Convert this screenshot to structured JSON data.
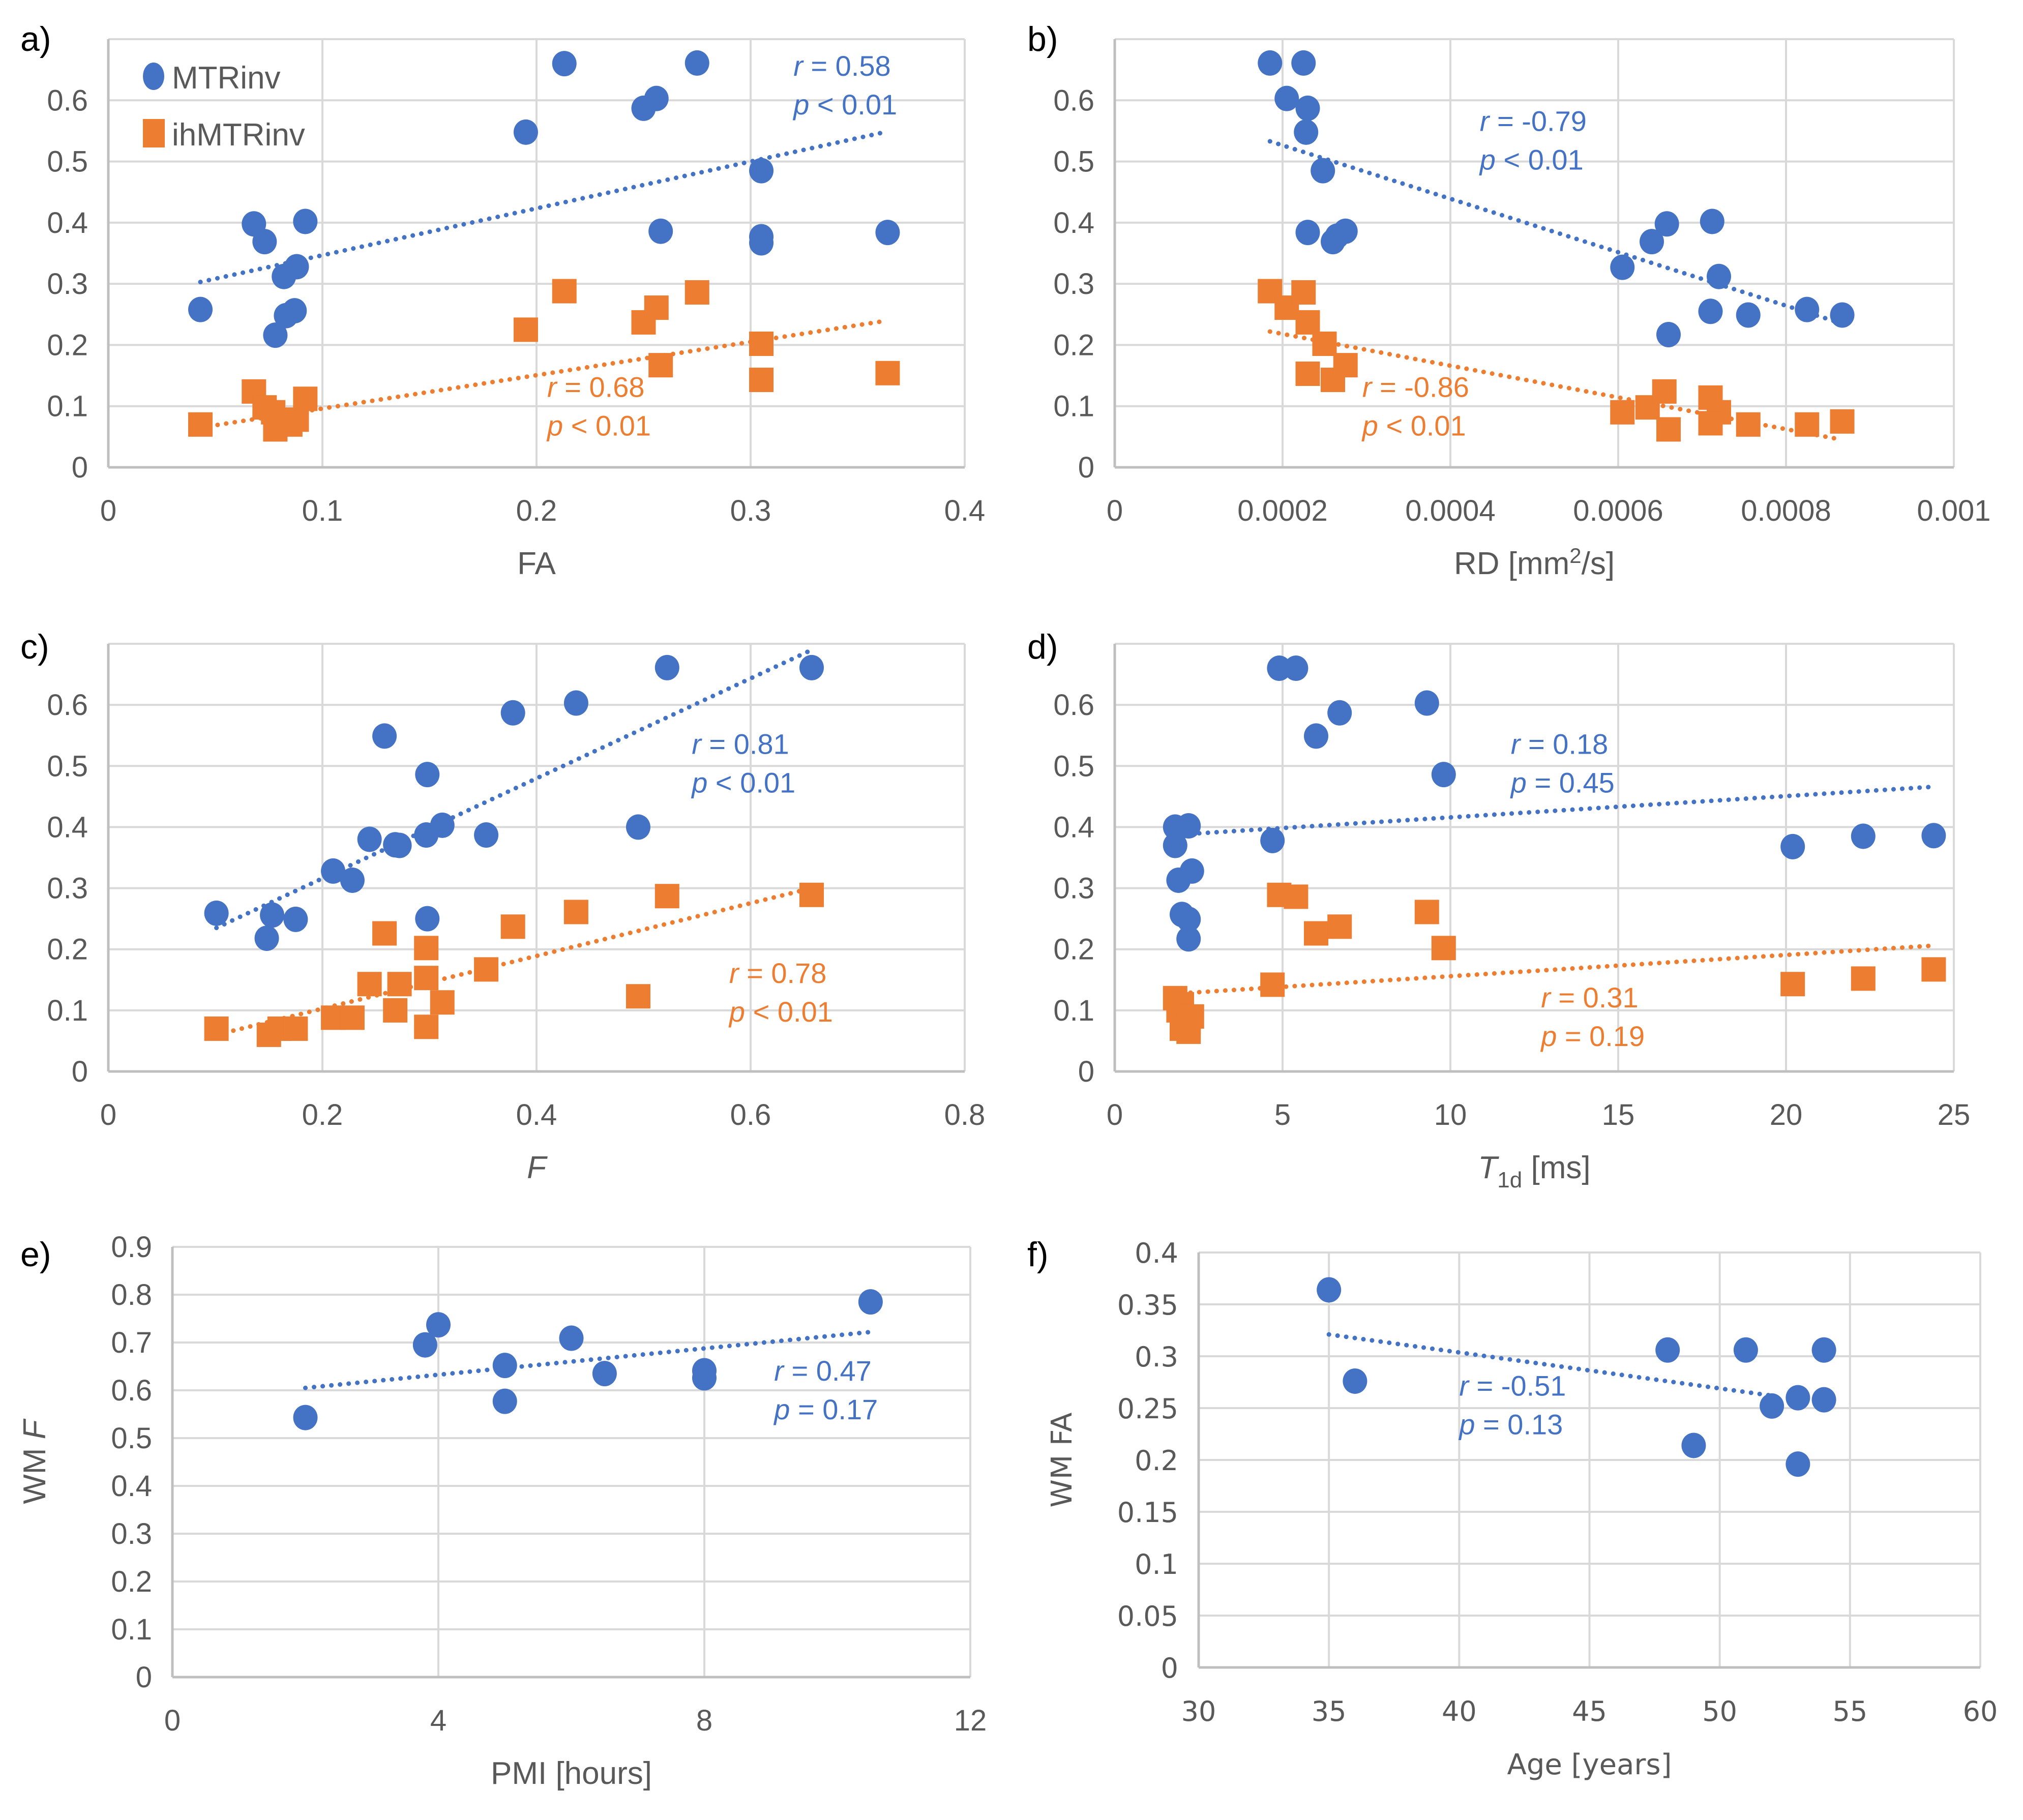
{
  "colors": {
    "mtr": "#4472C4",
    "ihmtr": "#ED7D31",
    "grid": "#D9D9D9",
    "text": "#595959"
  },
  "legend": [
    {
      "label": "MTRinv",
      "marker": "circle",
      "color": "#4472C4"
    },
    {
      "label": "ihMTRinv",
      "marker": "square",
      "color": "#ED7D31"
    }
  ],
  "chart_data": [
    {
      "panel": "a)",
      "type": "scatter",
      "xlabel": "FA",
      "ylabel": "",
      "xlim": [
        0,
        0.4
      ],
      "ylim": [
        0,
        0.7
      ],
      "xticks": [
        "0",
        "0.1",
        "0.2",
        "0.3",
        "0.4"
      ],
      "xtick_values": [
        0,
        0.1,
        0.2,
        0.3,
        0.4
      ],
      "yticks": [
        "0",
        "0.1",
        "0.2",
        "0.3",
        "0.4",
        "0.5",
        "0.6"
      ],
      "ytick_values": [
        0,
        0.1,
        0.2,
        0.3,
        0.4,
        0.5,
        0.6
      ],
      "grid": true,
      "legend": "top-left",
      "series": [
        {
          "name": "MTRinv",
          "marker": "circle",
          "x": [
            0.043,
            0.068,
            0.073,
            0.092,
            0.082,
            0.088,
            0.083,
            0.087,
            0.078,
            0.195,
            0.213,
            0.25,
            0.256,
            0.275,
            0.305,
            0.258,
            0.305,
            0.305,
            0.364
          ],
          "y": [
            0.258,
            0.398,
            0.369,
            0.402,
            0.312,
            0.328,
            0.248,
            0.256,
            0.216,
            0.548,
            0.66,
            0.587,
            0.603,
            0.661,
            0.485,
            0.386,
            0.377,
            0.367,
            0.384
          ],
          "trend": {
            "x": [
              0.043,
              0.364
            ],
            "y": [
              0.303,
              0.549
            ]
          },
          "annotation": {
            "r": "r = 0.58",
            "p": "p < 0.01",
            "r_value": "= 0.58",
            "p_value": "< 0.01",
            "at": [
              0.32,
              0.64
            ]
          }
        },
        {
          "name": "ihMTRinv",
          "marker": "square",
          "x": [
            0.043,
            0.068,
            0.073,
            0.077,
            0.078,
            0.085,
            0.088,
            0.092,
            0.195,
            0.213,
            0.25,
            0.256,
            0.275,
            0.258,
            0.305,
            0.305,
            0.364
          ],
          "y": [
            0.07,
            0.124,
            0.098,
            0.09,
            0.062,
            0.07,
            0.078,
            0.112,
            0.225,
            0.288,
            0.237,
            0.261,
            0.286,
            0.167,
            0.202,
            0.143,
            0.154
          ],
          "trend": {
            "x": [
              0.043,
              0.364
            ],
            "y": [
              0.065,
              0.24
            ]
          },
          "annotation": {
            "r": "r = 0.68",
            "p": "p < 0.01",
            "r_value": "= 0.68",
            "p_value": "< 0.01",
            "at": [
              0.205,
              0.115
            ]
          }
        }
      ]
    },
    {
      "panel": "b)",
      "type": "scatter",
      "xlabel": "RD [mm²/s]",
      "ylabel": "",
      "xlim": [
        0,
        0.001
      ],
      "ylim": [
        0,
        0.7
      ],
      "xticks": [
        "0",
        "0.0002",
        "0.0004",
        "0.0006",
        "0.0008",
        "0.001"
      ],
      "xtick_values": [
        0,
        0.0002,
        0.0004,
        0.0006,
        0.0008,
        0.001
      ],
      "yticks": [
        "0",
        "0.1",
        "0.2",
        "0.3",
        "0.4",
        "0.5",
        "0.6"
      ],
      "ytick_values": [
        0,
        0.1,
        0.2,
        0.3,
        0.4,
        0.5,
        0.6
      ],
      "grid": true,
      "series": [
        {
          "name": "MTRinv",
          "marker": "circle",
          "x": [
            0.000185,
            0.000225,
            0.000205,
            0.00023,
            0.000228,
            0.000248,
            0.00023,
            0.00026,
            0.000265,
            0.000275,
            0.000605,
            0.00064,
            0.000658,
            0.000712,
            0.00072,
            0.00071,
            0.000755,
            0.000825,
            0.000867,
            0.00066
          ],
          "y": [
            0.661,
            0.661,
            0.603,
            0.587,
            0.548,
            0.485,
            0.384,
            0.369,
            0.378,
            0.386,
            0.327,
            0.369,
            0.398,
            0.402,
            0.312,
            0.255,
            0.249,
            0.258,
            0.249,
            0.217
          ],
          "trend": {
            "x": [
              0.000185,
              0.000867
            ],
            "y": [
              0.533,
              0.235
            ]
          },
          "annotation": {
            "r": "r = -0.79",
            "p": "p < 0.01",
            "r_value": "= -0.79",
            "p_value": "< 0.01",
            "at": [
              0.000435,
              0.55
            ]
          }
        },
        {
          "name": "ihMTRinv",
          "marker": "square",
          "x": [
            0.000185,
            0.000205,
            0.000225,
            0.00023,
            0.00023,
            0.00025,
            0.00026,
            0.000275,
            0.000605,
            0.000635,
            0.000655,
            0.00066,
            0.00071,
            0.00072,
            0.00071,
            0.000755,
            0.000825,
            0.000867
          ],
          "y": [
            0.288,
            0.261,
            0.286,
            0.237,
            0.153,
            0.202,
            0.143,
            0.167,
            0.09,
            0.098,
            0.124,
            0.062,
            0.114,
            0.09,
            0.072,
            0.07,
            0.07,
            0.075
          ],
          "trend": {
            "x": [
              0.000185,
              0.000867
            ],
            "y": [
              0.222,
              0.045
            ]
          },
          "annotation": {
            "r": "r = -0.86",
            "p": "p < 0.01",
            "r_value": "= -0.86",
            "p_value": "< 0.01",
            "at": [
              0.000295,
              0.115
            ]
          }
        }
      ]
    },
    {
      "panel": "c)",
      "type": "scatter",
      "xlabel": "F",
      "xlabel_italic": true,
      "ylabel": "",
      "xlim": [
        0,
        0.8
      ],
      "ylim": [
        0,
        0.7
      ],
      "xticks": [
        "0",
        "0.2",
        "0.4",
        "0.6",
        "0.8"
      ],
      "xtick_values": [
        0,
        0.2,
        0.4,
        0.6,
        0.8
      ],
      "yticks": [
        "0",
        "0.1",
        "0.2",
        "0.3",
        "0.4",
        "0.5",
        "0.6"
      ],
      "ytick_values": [
        0,
        0.1,
        0.2,
        0.3,
        0.4,
        0.5,
        0.6
      ],
      "grid": true,
      "series": [
        {
          "name": "MTRinv",
          "marker": "circle",
          "x": [
            0.101,
            0.153,
            0.175,
            0.148,
            0.21,
            0.228,
            0.244,
            0.258,
            0.268,
            0.272,
            0.297,
            0.298,
            0.298,
            0.312,
            0.353,
            0.378,
            0.437,
            0.495,
            0.522,
            0.657
          ],
          "y": [
            0.259,
            0.256,
            0.249,
            0.218,
            0.328,
            0.313,
            0.38,
            0.549,
            0.371,
            0.37,
            0.387,
            0.486,
            0.25,
            0.403,
            0.387,
            0.587,
            0.603,
            0.4,
            0.661,
            0.661
          ],
          "trend": {
            "x": [
              0.101,
              0.657
            ],
            "y": [
              0.235,
              0.69
            ]
          },
          "annotation": {
            "r": "r = 0.81",
            "p": "p < 0.01",
            "r_value": "= 0.81",
            "p_value": "< 0.01",
            "at": [
              0.545,
              0.52
            ]
          }
        },
        {
          "name": "ihMTRinv",
          "marker": "square",
          "x": [
            0.101,
            0.15,
            0.16,
            0.175,
            0.21,
            0.228,
            0.244,
            0.258,
            0.268,
            0.272,
            0.297,
            0.297,
            0.297,
            0.312,
            0.353,
            0.378,
            0.437,
            0.495,
            0.522,
            0.657
          ],
          "y": [
            0.07,
            0.06,
            0.07,
            0.07,
            0.088,
            0.088,
            0.143,
            0.226,
            0.1,
            0.143,
            0.202,
            0.153,
            0.073,
            0.113,
            0.167,
            0.237,
            0.261,
            0.123,
            0.287,
            0.289
          ],
          "trend": {
            "x": [
              0.101,
              0.657
            ],
            "y": [
              0.06,
              0.3
            ]
          },
          "annotation": {
            "r": "r = 0.78",
            "p": "p < 0.01",
            "r_value": "= 0.78",
            "p_value": "< 0.01",
            "at": [
              0.58,
              0.145
            ]
          }
        }
      ]
    },
    {
      "panel": "d)",
      "type": "scatter",
      "xlabel": "T1d [ms]",
      "xlabel_main": "T",
      "xlabel_sub": "1d",
      "xlabel_unit": " [ms]",
      "ylabel": "",
      "xlim": [
        0,
        25
      ],
      "ylim": [
        0,
        0.7
      ],
      "xticks": [
        "0",
        "5",
        "10",
        "15",
        "20",
        "25"
      ],
      "xtick_values": [
        0,
        5,
        10,
        15,
        20,
        25
      ],
      "yticks": [
        "0",
        "0.1",
        "0.2",
        "0.3",
        "0.4",
        "0.5",
        "0.6"
      ],
      "ytick_values": [
        0,
        0.1,
        0.2,
        0.3,
        0.4,
        0.5,
        0.6
      ],
      "grid": true,
      "series": [
        {
          "name": "MTRinv",
          "marker": "circle",
          "x": [
            1.8,
            2.2,
            1.8,
            1.9,
            2.3,
            2.0,
            2.2,
            2.2,
            4.9,
            5.4,
            6.0,
            6.7,
            9.3,
            9.8,
            4.7,
            20.2,
            22.3,
            24.4
          ],
          "y": [
            0.4,
            0.402,
            0.37,
            0.313,
            0.328,
            0.257,
            0.249,
            0.217,
            0.66,
            0.66,
            0.549,
            0.587,
            0.603,
            0.486,
            0.378,
            0.368,
            0.385,
            0.386
          ],
          "trend": {
            "x": [
              2.0,
              24.4
            ],
            "y": [
              0.388,
              0.466
            ]
          },
          "annotation": {
            "r": "r = 0.18",
            "p": "p = 0.45",
            "r_value": "= 0.18",
            "p_value": "= 0.45",
            "at": [
              11.8,
              0.52
            ]
          }
        },
        {
          "name": "ihMTRinv",
          "marker": "square",
          "x": [
            1.8,
            1.9,
            2.0,
            2.2,
            2.3,
            2.2,
            2.0,
            4.9,
            5.4,
            6.0,
            6.7,
            9.3,
            9.8,
            4.7,
            20.2,
            22.3,
            24.4
          ],
          "y": [
            0.12,
            0.1,
            0.11,
            0.08,
            0.09,
            0.065,
            0.07,
            0.289,
            0.286,
            0.226,
            0.237,
            0.261,
            0.202,
            0.142,
            0.143,
            0.152,
            0.167
          ],
          "trend": {
            "x": [
              2.0,
              24.4
            ],
            "y": [
              0.128,
              0.206
            ]
          },
          "annotation": {
            "r": "r = 0.31",
            "p": "p = 0.19",
            "r_value": "= 0.31",
            "p_value": "= 0.19",
            "at": [
              12.7,
              0.105
            ]
          }
        }
      ]
    },
    {
      "panel": "e)",
      "type": "scatter",
      "xlabel": "PMI [hours]",
      "ylabel": "WM F",
      "ylabel_main": "WM ",
      "ylabel_italic": "F",
      "xlim": [
        0,
        12
      ],
      "ylim": [
        0,
        0.9
      ],
      "xticks": [
        "0",
        "4",
        "8",
        "12"
      ],
      "xtick_values": [
        0,
        4,
        8,
        12
      ],
      "yticks": [
        "0",
        "0.1",
        "0.2",
        "0.3",
        "0.4",
        "0.5",
        "0.6",
        "0.7",
        "0.8",
        "0.9"
      ],
      "ytick_values": [
        0,
        0.1,
        0.2,
        0.3,
        0.4,
        0.5,
        0.6,
        0.7,
        0.8,
        0.9
      ],
      "grid": true,
      "series": [
        {
          "name": "WM F",
          "marker": "circle",
          "x": [
            2,
            3.8,
            4,
            5,
            5,
            6,
            6.5,
            8,
            8,
            10.5
          ],
          "y": [
            0.543,
            0.695,
            0.737,
            0.652,
            0.577,
            0.709,
            0.635,
            0.641,
            0.626,
            0.785
          ],
          "trend": {
            "x": [
              2,
              10.5
            ],
            "y": [
              0.605,
              0.722
            ]
          },
          "annotation": {
            "r": "r = 0.47",
            "p": "p = 0.17",
            "r_value": "= 0.47",
            "p_value": "= 0.17",
            "at": [
              9.05,
              0.62
            ]
          }
        }
      ]
    },
    {
      "panel": "f)",
      "type": "scatter",
      "xlabel": "Age [years]",
      "ylabel": "WM FA",
      "xlim": [
        30,
        60
      ],
      "ylim": [
        0,
        0.4
      ],
      "xticks": [
        "30",
        "35",
        "40",
        "45",
        "50",
        "55",
        "60"
      ],
      "xtick_values": [
        30,
        35,
        40,
        45,
        50,
        55,
        60
      ],
      "yticks": [
        "0",
        "0.05",
        "0.1",
        "0.15",
        "0.2",
        "0.25",
        "0.3",
        "0.35",
        "0.4"
      ],
      "ytick_values": [
        0,
        0.05,
        0.1,
        0.15,
        0.2,
        0.25,
        0.3,
        0.35,
        0.4
      ],
      "grid": true,
      "series": [
        {
          "name": "WM FA",
          "marker": "circle",
          "x": [
            35,
            36,
            48,
            49,
            51,
            52,
            53,
            53,
            54,
            54
          ],
          "y": [
            0.364,
            0.276,
            0.306,
            0.214,
            0.306,
            0.252,
            0.26,
            0.196,
            0.306,
            0.258
          ],
          "trend": {
            "x": [
              35,
              52
            ],
            "y": [
              0.321,
              0.262
            ]
          },
          "annotation": {
            "r": "r = -0.51",
            "p": "p = 0.13",
            "r_value": "= -0.51",
            "p_value": "= 0.13",
            "at": [
              40.0,
              0.262
            ]
          }
        }
      ]
    }
  ]
}
